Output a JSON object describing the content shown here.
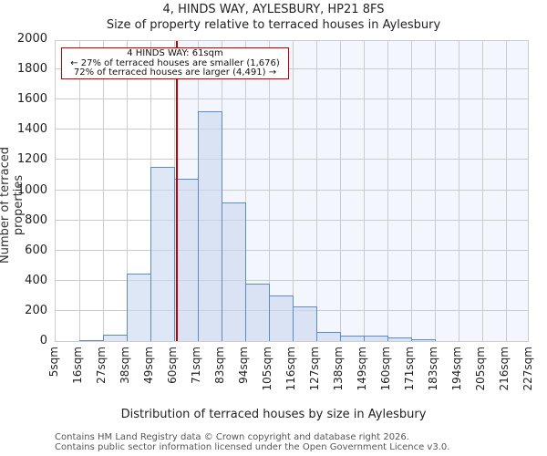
{
  "header": {
    "title": "4, HINDS WAY, AYLESBURY, HP21 8FS",
    "subtitle": "Size of property relative to terraced houses in Aylesbury"
  },
  "annotation": {
    "line1": "4 HINDS WAY: 61sqm",
    "line2": "← 27% of terraced houses are smaller (1,676)",
    "line3": "72% of terraced houses are larger (4,491) →"
  },
  "axes": {
    "ylabel": "Number of terraced properties",
    "xlabel": "Distribution of terraced houses by size in Aylesbury",
    "yticks": [
      "0",
      "200",
      "400",
      "600",
      "800",
      "1000",
      "1200",
      "1400",
      "1600",
      "1800",
      "2000"
    ],
    "xticks": [
      "5sqm",
      "16sqm",
      "27sqm",
      "38sqm",
      "49sqm",
      "60sqm",
      "71sqm",
      "83sqm",
      "94sqm",
      "105sqm",
      "116sqm",
      "127sqm",
      "138sqm",
      "149sqm",
      "160sqm",
      "171sqm",
      "183sqm",
      "194sqm",
      "205sqm",
      "216sqm",
      "227sqm"
    ]
  },
  "footer": {
    "line1": "Contains HM Land Registry data © Crown copyright and database right 2026.",
    "line2": "Contains public sector information licensed under the Open Government Licence v3.0."
  },
  "colors": {
    "bar_edge": "#5b8cc8",
    "bar_fill": "#dbe5f4",
    "marker": "#c00000",
    "highlight_bg": "#f3f6fc",
    "grid": "#cccccc"
  },
  "chart_data": {
    "type": "bar",
    "title": "4, HINDS WAY, AYLESBURY, HP21 8FS",
    "subtitle": "Size of property relative to terraced houses in Aylesbury",
    "xlabel": "Distribution of terraced houses by size in Aylesbury",
    "ylabel": "Number of terraced properties",
    "ylim": [
      0,
      2000
    ],
    "grid": true,
    "bin_edges": [
      5,
      16,
      27,
      38,
      49,
      60,
      71,
      83,
      94,
      105,
      116,
      127,
      138,
      149,
      160,
      171,
      183,
      194,
      205,
      216,
      227
    ],
    "categories": [
      "5sqm",
      "16sqm",
      "27sqm",
      "38sqm",
      "49sqm",
      "60sqm",
      "71sqm",
      "83sqm",
      "94sqm",
      "105sqm",
      "116sqm",
      "127sqm",
      "138sqm",
      "149sqm",
      "160sqm",
      "171sqm",
      "183sqm",
      "194sqm",
      "205sqm",
      "216sqm"
    ],
    "values": [
      0,
      5,
      40,
      445,
      1152,
      1075,
      1521,
      917,
      380,
      300,
      228,
      59,
      34,
      34,
      22,
      10,
      0,
      0,
      0,
      0
    ],
    "marker": {
      "value": 61,
      "label": "4 HINDS WAY: 61sqm"
    },
    "annotations": [
      "4 HINDS WAY: 61sqm",
      "← 27% of terraced houses are smaller (1,676)",
      "72% of terraced houses are larger (4,491) →"
    ]
  }
}
